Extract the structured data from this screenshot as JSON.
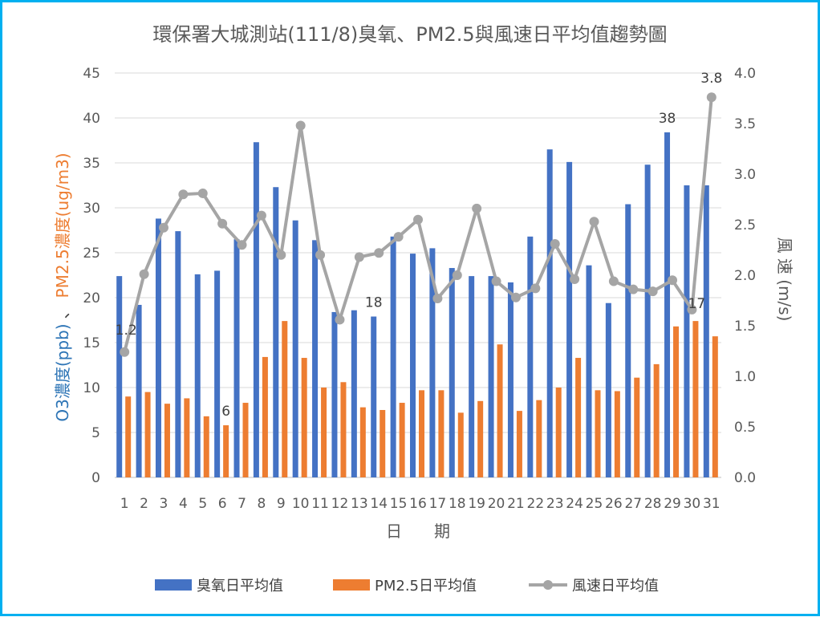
{
  "chart_data": {
    "type": "bar+line",
    "title": "環保署大城測站(111/8)臭氧、PM2.5與風速日平均值趨勢圖",
    "xlabel": "日　　期",
    "ylabel_left_o3": "O3濃度(ppb)",
    "ylabel_left_sep": "、",
    "ylabel_left_pm": "PM2.5濃度(ug/m3)",
    "ylabel_right": "風 速 (m/s)",
    "categories": [
      "1",
      "2",
      "3",
      "4",
      "5",
      "6",
      "7",
      "8",
      "9",
      "10",
      "11",
      "12",
      "13",
      "14",
      "15",
      "16",
      "17",
      "18",
      "19",
      "20",
      "21",
      "22",
      "23",
      "24",
      "25",
      "26",
      "27",
      "28",
      "29",
      "30",
      "31"
    ],
    "ylim_left": [
      0,
      45
    ],
    "yticks_left": [
      "0",
      "5",
      "10",
      "15",
      "20",
      "25",
      "30",
      "35",
      "40",
      "45"
    ],
    "ylim_right": [
      0,
      4.0
    ],
    "yticks_right": [
      "0.0",
      "0.5",
      "1.0",
      "1.5",
      "2.0",
      "2.5",
      "3.0",
      "3.5",
      "4.0"
    ],
    "legend_position": "bottom",
    "series": [
      {
        "name": "臭氧日平均值",
        "type": "bar",
        "axis": "left",
        "color": "#4472C4",
        "values": [
          22.4,
          19.2,
          28.8,
          27.4,
          22.6,
          23.0,
          26.5,
          37.3,
          32.3,
          28.6,
          26.4,
          18.4,
          18.6,
          17.9,
          26.8,
          24.9,
          25.5,
          23.3,
          22.4,
          22.4,
          21.7,
          26.8,
          36.5,
          35.1,
          23.6,
          19.4,
          30.4,
          34.8,
          38.4,
          32.5,
          32.5
        ]
      },
      {
        "name": "PM2.5日平均值",
        "type": "bar",
        "axis": "left",
        "color": "#ED7D31",
        "values": [
          9.0,
          9.5,
          8.2,
          8.8,
          6.8,
          5.8,
          8.3,
          13.4,
          17.4,
          13.3,
          10.0,
          10.6,
          7.8,
          7.5,
          8.3,
          9.7,
          9.7,
          7.2,
          8.5,
          14.8,
          7.4,
          8.6,
          10.0,
          13.3,
          9.7,
          9.6,
          11.1,
          12.6,
          16.8,
          17.4,
          15.7
        ]
      },
      {
        "name": "風速日平均值",
        "type": "line",
        "axis": "right",
        "color": "#A5A5A5",
        "values": [
          1.24,
          2.01,
          2.47,
          2.8,
          2.81,
          2.51,
          2.3,
          2.59,
          2.2,
          3.48,
          2.2,
          1.56,
          2.18,
          2.22,
          2.38,
          2.55,
          1.77,
          2.0,
          2.66,
          1.94,
          1.78,
          1.87,
          2.31,
          1.96,
          2.53,
          1.94,
          1.86,
          1.84,
          1.95,
          1.66,
          3.76
        ]
      }
    ],
    "annotations": [
      {
        "text": "1.2",
        "series": "風速日平均值",
        "day": "1"
      },
      {
        "text": "6",
        "series": "PM2.5日平均值",
        "day": "6"
      },
      {
        "text": "18",
        "series": "臭氧日平均值",
        "day": "14"
      },
      {
        "text": "38",
        "series": "臭氧日平均值",
        "day": "29"
      },
      {
        "text": "17",
        "series": "PM2.5日平均值",
        "day": "30"
      },
      {
        "text": "3.8",
        "series": "風速日平均值",
        "day": "31"
      }
    ]
  }
}
